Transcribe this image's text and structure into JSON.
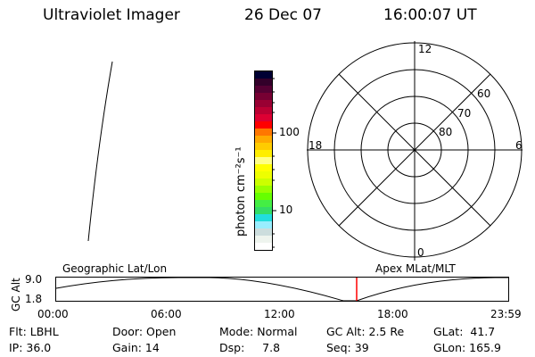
{
  "header": {
    "instrument": "Ultraviolet Imager",
    "date": "26 Dec 07",
    "time": "16:00:07 UT"
  },
  "colorbar": {
    "label": "photon cm⁻²s⁻¹",
    "tick_labels": [
      "100",
      "10"
    ],
    "colors_top_to_bottom": [
      "#000033",
      "#33002a",
      "#550033",
      "#770033",
      "#990033",
      "#bb0033",
      "#dd0033",
      "#ff0000",
      "#ff7700",
      "#ffaa00",
      "#ffcc00",
      "#ffee00",
      "#ffff88",
      "#ffff00",
      "#eeff00",
      "#ccff00",
      "#99ff00",
      "#66ff00",
      "#44ee44",
      "#33dd66",
      "#22dddd",
      "#99eeff",
      "#ccdddd",
      "#eef4ee",
      "#ffffff"
    ]
  },
  "polar": {
    "mlt_labels": {
      "top": "12",
      "right": "6",
      "bottom": "0",
      "left": "18"
    },
    "lat_labels": [
      "60",
      "70",
      "80"
    ]
  },
  "orbit": {
    "left_label": "Geographic Lat/Lon",
    "right_label": "Apex MLat/MLT",
    "ylabel": "GC Alt",
    "y_ticks": [
      "9.0",
      "1.8"
    ],
    "x_ticks": [
      "00:00",
      "06:00",
      "12:00",
      "18:00",
      "23:59"
    ],
    "current_marker_color": "#ff0000"
  },
  "info": {
    "flt": "Flt: LBHL",
    "ip": "IP: 36.0",
    "door": "Door: Open",
    "gain": "Gain: 14",
    "mode": "Mode: Normal",
    "dsp": "Dsp:     7.8",
    "gcalt": "GC Alt: 2.5 Re",
    "seq": "Seq: 39",
    "glat": "GLat:  41.7",
    "glon": "GLon: 165.9"
  }
}
